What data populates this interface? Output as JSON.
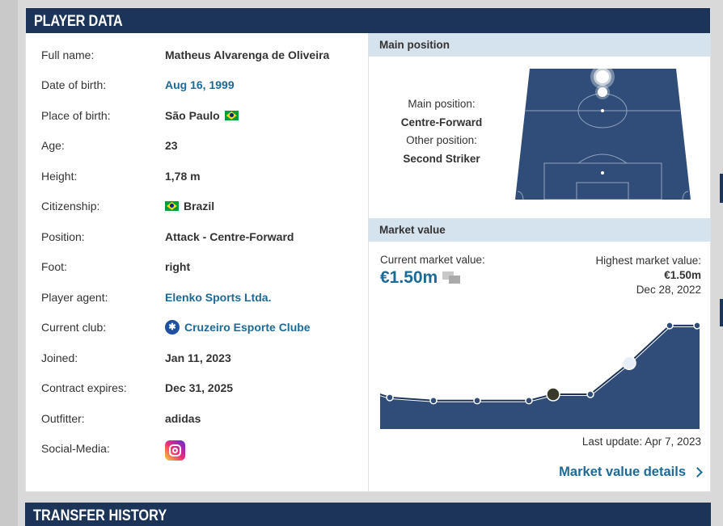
{
  "player_data": {
    "title": "PLAYER DATA",
    "rows": [
      {
        "label": "Full name:",
        "value": "Matheus Alvarenga de Oliveira"
      },
      {
        "label": "Date of birth:",
        "value": "Aug 16, 1999"
      },
      {
        "label": "Place of birth:",
        "value": "São Paulo"
      },
      {
        "label": "Age:",
        "value": "23"
      },
      {
        "label": "Height:",
        "value": "1,78 m"
      },
      {
        "label": "Citizenship:",
        "value": "Brazil"
      },
      {
        "label": "Position:",
        "value": "Attack - Centre-Forward"
      },
      {
        "label": "Foot:",
        "value": "right"
      },
      {
        "label": "Player agent:",
        "value": "Elenko Sports Ltda."
      },
      {
        "label": "Current club:",
        "value": "Cruzeiro Esporte Clube"
      },
      {
        "label": "Joined:",
        "value": "Jan 11, 2023"
      },
      {
        "label": "Contract expires:",
        "value": "Dec 31, 2025"
      },
      {
        "label": "Outfitter:",
        "value": "adidas"
      },
      {
        "label": "Social-Media:",
        "value": ""
      }
    ]
  },
  "main_position": {
    "title": "Main position",
    "main_label": "Main position:",
    "main_value": "Centre-Forward",
    "other_label": "Other position:",
    "other_value": "Second Striker"
  },
  "market_value": {
    "title": "Market value",
    "current_label": "Current market value:",
    "current_value": "€1.50m",
    "highest_label": "Highest market value:",
    "highest_value": "€1.50m",
    "highest_date": "Dec 28, 2022",
    "last_update": "Last update: Apr 7, 2023",
    "details_link": "Market value details"
  },
  "transfer_history": {
    "title": "TRANSFER HISTORY"
  },
  "colors": {
    "header_bg": "#1c3458",
    "link": "#1d6a96",
    "subheader_bg": "#d5e3ef",
    "pitch": "#2f4d78",
    "chart_fill": "#2f4d78"
  },
  "chart_data": {
    "type": "area",
    "series": [
      {
        "values": [
          0.35,
          0.3,
          0.3,
          0.3,
          0.4,
          0.4,
          0.9,
          1.5,
          1.5
        ]
      }
    ],
    "grid": false,
    "legend": "none"
  }
}
